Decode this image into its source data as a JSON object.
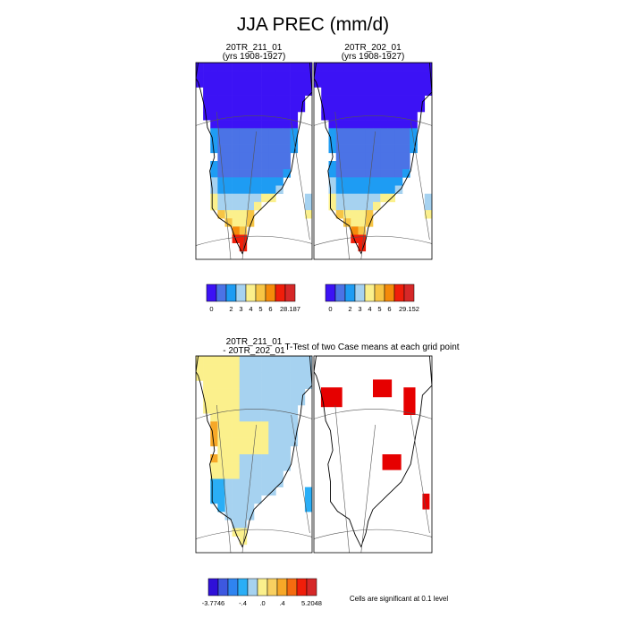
{
  "figure": {
    "title": "JJA PREC (mm/d)",
    "footnote": "Cells are significant at 0.1 level"
  },
  "colors": {
    "precip_scale": [
      "#3c12f5",
      "#4b73e6",
      "#1e9cf3",
      "#a6d2f0",
      "#fbf08c",
      "#f7c545",
      "#f58a0a",
      "#f01e0a",
      "#d62828"
    ],
    "diff_scale": [
      "#2f10d8",
      "#3d58e0",
      "#2f84f0",
      "#2aaef6",
      "#a6d2f0",
      "#fbf08c",
      "#f9d060",
      "#f7a828",
      "#f56b10",
      "#f01e0a",
      "#d62828"
    ],
    "significant": "#e60000",
    "coastline": "#000000",
    "gridline": "#555555"
  },
  "chart_data": [
    {
      "type": "heatmap",
      "title": "20TR_211_01",
      "subtitle": "(yrs 1908-1927)",
      "legend_labels": [
        "0",
        "",
        "2",
        "3",
        "4",
        "5",
        "6",
        "",
        "28.187"
      ]
    },
    {
      "type": "heatmap",
      "title": "20TR_202_01",
      "subtitle": "(yrs 1908-1927)",
      "legend_labels": [
        "0",
        "",
        "2",
        "3",
        "4",
        "5",
        "6",
        "",
        "29.152"
      ]
    },
    {
      "type": "heatmap",
      "title": "20TR_211_01",
      "subtitle": "- 20TR_202_01",
      "legend_labels": [
        "-3.7746",
        "",
        "",
        "-.4",
        "",
        ".0",
        "",
        ".4",
        "",
        "",
        "5.2048"
      ]
    },
    {
      "type": "heatmap",
      "title": "T-Test of two Case means at each grid point",
      "subtitle": ""
    }
  ]
}
